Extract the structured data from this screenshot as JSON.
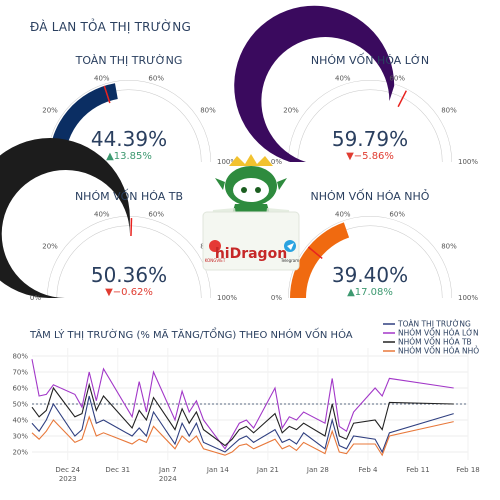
{
  "page": {
    "title": "ĐÀ LAN TỎA THỊ TRƯỜNG"
  },
  "gauges": [
    {
      "title": "TOÀN THỊ TRƯỜNG",
      "value": 44.39,
      "value_text": "44.39%",
      "delta_text": "▲13.85%",
      "delta_dir": "up",
      "threshold": 40,
      "color": "#0b2e63"
    },
    {
      "title": "NHÓM VỐN HÓA LỚN",
      "value": 59.79,
      "value_text": "59.79%",
      "delta_text": "▼−5.86%",
      "delta_dir": "down",
      "threshold": 65,
      "color": "#3a0a5e"
    },
    {
      "title": "NHÓM VỐN HÓA TB",
      "value": 50.36,
      "value_text": "50.36%",
      "delta_text": "▼−0.62%",
      "delta_dir": "down",
      "threshold": 51,
      "color": "#1c1c1c"
    },
    {
      "title": "NHÓM VỐN HÓA NHỎ",
      "value": 39.4,
      "value_text": "39.40%",
      "delta_text": "▲17.08%",
      "delta_dir": "up",
      "threshold": 22,
      "color": "#f06a10"
    }
  ],
  "gauge_ticks": [
    "0%",
    "20%",
    "40%",
    "60%",
    "80%",
    "100%"
  ],
  "logo": {
    "brand": "hiDragon",
    "left_caption": "KONGVIET",
    "right_caption": "Telegram"
  },
  "colors": {
    "up": "#3d9970",
    "down": "#e03c31",
    "threshold": "#e8231f",
    "track": "#d9d9d9"
  },
  "chart_data": {
    "type": "line",
    "title": "TÂM LÝ THỊ TRƯỜNG (% MÃ TĂNG/TỔNG) THEO NHÓM VỐN HÓA",
    "yticks": [
      "20%",
      "30%",
      "40%",
      "50%",
      "60%",
      "70%",
      "80%"
    ],
    "ylim": [
      15,
      85
    ],
    "xlim": [
      "2023-12-19",
      "2024-02-18"
    ],
    "xticks": [
      {
        "date": "2023-12-24",
        "label": "Dec 24",
        "sub": "2023"
      },
      {
        "date": "2023-12-31",
        "label": "Dec 31",
        "sub": ""
      },
      {
        "date": "2024-01-07",
        "label": "Jan 7",
        "sub": "2024"
      },
      {
        "date": "2024-01-14",
        "label": "Jan 14",
        "sub": ""
      },
      {
        "date": "2024-01-21",
        "label": "Jan 21",
        "sub": ""
      },
      {
        "date": "2024-01-28",
        "label": "Jan 28",
        "sub": ""
      },
      {
        "date": "2024-02-04",
        "label": "Feb 4",
        "sub": ""
      },
      {
        "date": "2024-02-11",
        "label": "Feb 11",
        "sub": ""
      },
      {
        "date": "2024-02-18",
        "label": "Feb 18",
        "sub": ""
      }
    ],
    "reference_line": 50,
    "x": [
      "2023-12-19",
      "2023-12-20",
      "2023-12-21",
      "2023-12-22",
      "2023-12-25",
      "2023-12-26",
      "2023-12-27",
      "2023-12-28",
      "2023-12-29",
      "2024-01-02",
      "2024-01-03",
      "2024-01-04",
      "2024-01-05",
      "2024-01-08",
      "2024-01-09",
      "2024-01-10",
      "2024-01-11",
      "2024-01-12",
      "2024-01-15",
      "2024-01-16",
      "2024-01-17",
      "2024-01-18",
      "2024-01-19",
      "2024-01-22",
      "2024-01-23",
      "2024-01-24",
      "2024-01-25",
      "2024-01-26",
      "2024-01-29",
      "2024-01-30",
      "2024-01-31",
      "2024-02-01",
      "2024-02-02",
      "2024-02-05",
      "2024-02-06",
      "2024-02-07",
      "2024-02-16"
    ],
    "series": [
      {
        "name": "TOÀN THỊ TRƯỜNG",
        "color": "#2f3f80",
        "values": [
          38,
          33,
          40,
          50,
          30,
          34,
          55,
          38,
          40,
          30,
          35,
          30,
          45,
          25,
          38,
          30,
          38,
          26,
          20,
          24,
          28,
          30,
          26,
          34,
          26,
          28,
          25,
          32,
          22,
          40,
          24,
          22,
          30,
          28,
          20,
          32,
          44
        ]
      },
      {
        "name": "NHÓM VỐN HÓA LỚN",
        "color": "#a237c8",
        "values": [
          78,
          55,
          56,
          62,
          56,
          48,
          70,
          52,
          72,
          42,
          64,
          45,
          70,
          40,
          58,
          45,
          52,
          40,
          22,
          30,
          38,
          40,
          35,
          60,
          35,
          42,
          40,
          45,
          38,
          66,
          36,
          33,
          45,
          60,
          55,
          66,
          60
        ]
      },
      {
        "name": "NHÓM VỐN HÓA TB",
        "color": "#222222",
        "values": [
          48,
          42,
          46,
          60,
          42,
          44,
          62,
          46,
          55,
          35,
          46,
          40,
          54,
          34,
          47,
          38,
          45,
          34,
          24,
          28,
          34,
          36,
          32,
          44,
          32,
          36,
          34,
          38,
          30,
          50,
          30,
          28,
          38,
          40,
          34,
          51,
          50
        ]
      },
      {
        "name": "NHÓM VỐN HÓA NHỎ",
        "color": "#e8783a",
        "values": [
          32,
          28,
          33,
          40,
          26,
          28,
          42,
          30,
          32,
          25,
          28,
          26,
          36,
          22,
          30,
          26,
          30,
          22,
          18,
          20,
          24,
          25,
          22,
          28,
          22,
          24,
          21,
          26,
          19,
          33,
          20,
          19,
          25,
          25,
          18,
          30,
          39
        ]
      }
    ]
  }
}
